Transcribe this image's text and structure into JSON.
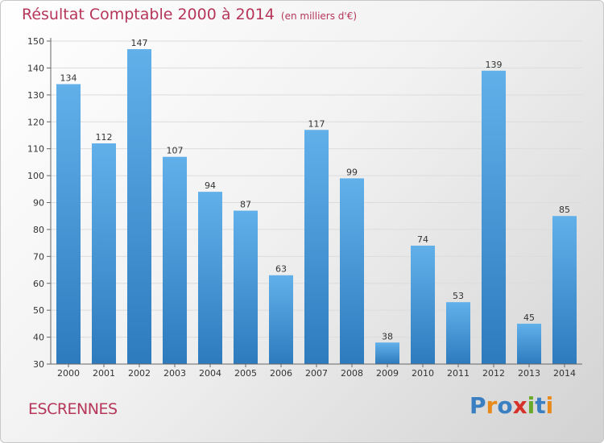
{
  "header": {
    "title": "Résultat Comptable 2000 à 2014",
    "subtitle": "(en milliers d'€)"
  },
  "commune_name": "ESCRENNES",
  "logo": {
    "text": "Proxiti",
    "letters": [
      {
        "char": "P",
        "color": "#3a7fc2"
      },
      {
        "char": "r",
        "color": "#e8891c"
      },
      {
        "char": "o",
        "color": "#3a7fc2"
      },
      {
        "char": "x",
        "color": "#d6322b"
      },
      {
        "char": "i",
        "color": "#6aaa2a"
      },
      {
        "char": "t",
        "color": "#3a7fc2"
      },
      {
        "char": "i",
        "color": "#e8891c"
      }
    ]
  },
  "colors": {
    "title": "#b5365a",
    "bar_light": "#5caae6",
    "bar_dark": "#2f7fc0",
    "grid": "#dddddd",
    "axis_text": "#333333"
  },
  "chart_data": {
    "type": "bar",
    "title": "Résultat Comptable 2000 à 2014",
    "subtitle": "(en milliers d'€)",
    "categories": [
      "2000",
      "2001",
      "2002",
      "2003",
      "2004",
      "2005",
      "2006",
      "2007",
      "2008",
      "2009",
      "2010",
      "2011",
      "2012",
      "2013",
      "2014"
    ],
    "values": [
      134,
      112,
      147,
      107,
      94,
      87,
      63,
      117,
      99,
      38,
      74,
      53,
      139,
      45,
      85
    ],
    "ylim": [
      30,
      150
    ],
    "yticks": [
      30,
      40,
      50,
      60,
      70,
      80,
      90,
      100,
      110,
      120,
      130,
      140,
      150
    ],
    "grid": true,
    "legend": "none"
  }
}
